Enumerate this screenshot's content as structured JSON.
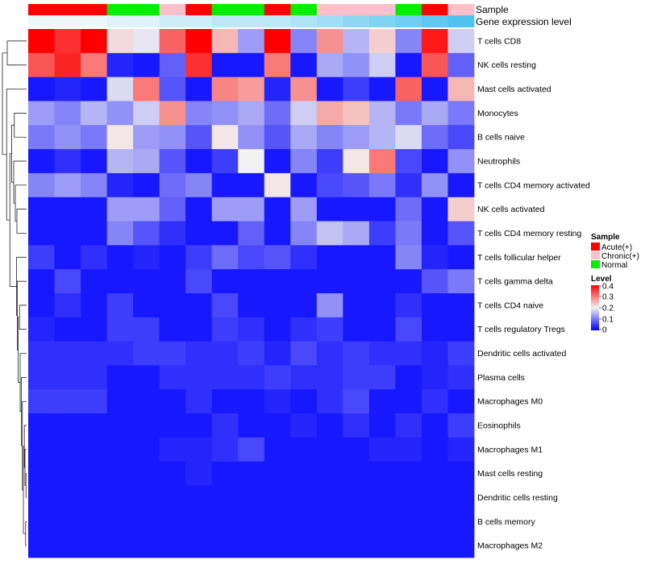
{
  "chart_data": {
    "type": "heatmap",
    "title": "",
    "n_columns": 17,
    "sample_annotation": {
      "label": "Sample",
      "values": [
        "Acute(+)",
        "Acute(+)",
        "Acute(+)",
        "Normal",
        "Normal",
        "Chronic(+)",
        "Acute(+)",
        "Normal",
        "Normal",
        "Acute(+)",
        "Normal",
        "Chronic(+)",
        "Chronic(+)",
        "Chronic(+)",
        "Normal",
        "Acute(+)",
        "Chronic(+)"
      ]
    },
    "expression_annotation": {
      "label": "Gene expression level",
      "values": [
        0.0,
        0.0,
        0.0,
        0.1,
        0.1,
        0.2,
        0.2,
        0.3,
        0.3,
        0.3,
        0.4,
        0.5,
        0.6,
        0.7,
        0.8,
        0.9,
        1.0
      ]
    },
    "rows": [
      {
        "name": "T cells CD8",
        "values": [
          0.4,
          0.36,
          0.4,
          0.22,
          0.19,
          0.32,
          0.4,
          0.25,
          0.13,
          0.4,
          0.11,
          0.28,
          0.15,
          0.23,
          0.11,
          0.38,
          0.17
        ]
      },
      {
        "name": "NK cells resting",
        "values": [
          0.33,
          0.37,
          0.3,
          0.03,
          0.02,
          0.08,
          0.36,
          0.02,
          0.02,
          0.3,
          0.02,
          0.14,
          0.12,
          0.17,
          0.02,
          0.33,
          0.08
        ]
      },
      {
        "name": "Mast cells activated",
        "values": [
          0.02,
          0.03,
          0.02,
          0.18,
          0.3,
          0.07,
          0.02,
          0.29,
          0.27,
          0.03,
          0.28,
          0.02,
          0.05,
          0.02,
          0.32,
          0.02,
          0.25
        ]
      },
      {
        "name": "Monocytes",
        "values": [
          0.13,
          0.11,
          0.15,
          0.12,
          0.17,
          0.28,
          0.11,
          0.12,
          0.14,
          0.09,
          0.17,
          0.26,
          0.24,
          0.15,
          0.1,
          0.14,
          0.1
        ]
      },
      {
        "name": "B cells naive",
        "values": [
          0.1,
          0.12,
          0.1,
          0.21,
          0.13,
          0.12,
          0.07,
          0.21,
          0.12,
          0.07,
          0.14,
          0.11,
          0.13,
          0.15,
          0.18,
          0.09,
          0.06
        ]
      },
      {
        "name": "Neutrophils",
        "values": [
          0.02,
          0.04,
          0.02,
          0.15,
          0.14,
          0.07,
          0.02,
          0.05,
          0.2,
          0.02,
          0.11,
          0.05,
          0.21,
          0.3,
          0.06,
          0.02,
          0.12
        ]
      },
      {
        "name": "T cells CD4 memory activated",
        "values": [
          0.11,
          0.13,
          0.11,
          0.03,
          0.02,
          0.09,
          0.11,
          0.02,
          0.02,
          0.21,
          0.02,
          0.06,
          0.07,
          0.1,
          0.04,
          0.12,
          0.02
        ]
      },
      {
        "name": "NK cells activated",
        "values": [
          0.02,
          0.02,
          0.02,
          0.13,
          0.13,
          0.08,
          0.02,
          0.13,
          0.13,
          0.02,
          0.13,
          0.02,
          0.02,
          0.02,
          0.09,
          0.02,
          0.23
        ]
      },
      {
        "name": "T cells CD4 memory resting",
        "values": [
          0.02,
          0.02,
          0.02,
          0.11,
          0.07,
          0.04,
          0.02,
          0.02,
          0.08,
          0.02,
          0.11,
          0.16,
          0.14,
          0.05,
          0.1,
          0.02,
          0.07
        ]
      },
      {
        "name": "T cells follicular helper",
        "values": [
          0.05,
          0.02,
          0.04,
          0.02,
          0.03,
          0.02,
          0.05,
          0.09,
          0.06,
          0.07,
          0.04,
          0.02,
          0.02,
          0.02,
          0.11,
          0.03,
          0.02
        ]
      },
      {
        "name": "T cells gamma delta",
        "values": [
          0.02,
          0.06,
          0.02,
          0.02,
          0.02,
          0.02,
          0.06,
          0.02,
          0.02,
          0.02,
          0.02,
          0.02,
          0.02,
          0.02,
          0.02,
          0.07,
          0.1
        ]
      },
      {
        "name": "T cells CD4 naive",
        "values": [
          0.02,
          0.04,
          0.02,
          0.05,
          0.02,
          0.02,
          0.02,
          0.06,
          0.02,
          0.02,
          0.02,
          0.12,
          0.02,
          0.02,
          0.04,
          0.02,
          0.02
        ]
      },
      {
        "name": "T cells regulatory  Tregs",
        "values": [
          0.03,
          0.02,
          0.02,
          0.05,
          0.05,
          0.02,
          0.02,
          0.05,
          0.04,
          0.02,
          0.04,
          0.05,
          0.02,
          0.02,
          0.06,
          0.02,
          0.02
        ]
      },
      {
        "name": "Dendritic cells activated",
        "values": [
          0.04,
          0.04,
          0.04,
          0.04,
          0.05,
          0.05,
          0.04,
          0.04,
          0.05,
          0.03,
          0.06,
          0.04,
          0.05,
          0.04,
          0.04,
          0.03,
          0.05
        ]
      },
      {
        "name": "Plasma cells",
        "values": [
          0.04,
          0.04,
          0.04,
          0.02,
          0.02,
          0.04,
          0.04,
          0.04,
          0.04,
          0.05,
          0.04,
          0.04,
          0.05,
          0.05,
          0.02,
          0.03,
          0.04
        ]
      },
      {
        "name": "Macrophages M0",
        "values": [
          0.05,
          0.05,
          0.05,
          0.02,
          0.02,
          0.02,
          0.04,
          0.02,
          0.02,
          0.03,
          0.02,
          0.04,
          0.06,
          0.02,
          0.02,
          0.04,
          0.02
        ]
      },
      {
        "name": "Eosinophils",
        "values": [
          0.02,
          0.02,
          0.02,
          0.02,
          0.02,
          0.02,
          0.02,
          0.04,
          0.02,
          0.02,
          0.03,
          0.02,
          0.04,
          0.02,
          0.04,
          0.02,
          0.05
        ]
      },
      {
        "name": "Macrophages M1",
        "values": [
          0.02,
          0.02,
          0.02,
          0.02,
          0.02,
          0.03,
          0.03,
          0.04,
          0.06,
          0.02,
          0.02,
          0.02,
          0.02,
          0.03,
          0.03,
          0.02,
          0.03
        ]
      },
      {
        "name": "Mast cells resting",
        "values": [
          0.02,
          0.02,
          0.02,
          0.02,
          0.02,
          0.02,
          0.03,
          0.02,
          0.02,
          0.02,
          0.02,
          0.02,
          0.02,
          0.02,
          0.02,
          0.02,
          0.02
        ]
      },
      {
        "name": "Dendritic cells resting",
        "values": [
          0.02,
          0.02,
          0.02,
          0.02,
          0.02,
          0.02,
          0.02,
          0.02,
          0.02,
          0.02,
          0.02,
          0.02,
          0.02,
          0.02,
          0.02,
          0.02,
          0.02
        ]
      },
      {
        "name": "B cells memory",
        "values": [
          0.02,
          0.02,
          0.02,
          0.02,
          0.02,
          0.02,
          0.02,
          0.02,
          0.02,
          0.02,
          0.02,
          0.02,
          0.02,
          0.02,
          0.02,
          0.02,
          0.02
        ]
      },
      {
        "name": "Macrophages M2",
        "values": [
          0.02,
          0.02,
          0.02,
          0.02,
          0.02,
          0.02,
          0.02,
          0.02,
          0.02,
          0.02,
          0.02,
          0.02,
          0.02,
          0.02,
          0.02,
          0.02,
          0.02
        ]
      }
    ],
    "color_scale": {
      "stops": [
        {
          "value": 0.0,
          "color": "#0000ff"
        },
        {
          "value": 0.2,
          "color": "#f2f2f2"
        },
        {
          "value": 0.4,
          "color": "#ff0000"
        }
      ]
    },
    "expression_colors": {
      "low": "#eef8fb",
      "high": "#4fc3f0"
    },
    "legend": {
      "sample": {
        "title": "Sample",
        "items": [
          {
            "label": "Acute(+)",
            "color": "#ff0000"
          },
          {
            "label": "Chronic(+)",
            "color": "#ffc0cb"
          },
          {
            "label": "Normal",
            "color": "#00ee00"
          }
        ]
      },
      "level": {
        "title": "Level",
        "ticks": [
          0.4,
          0.3,
          0.2,
          0.1,
          0
        ]
      }
    },
    "row_dendrogram": {
      "merges": [
        [
          -19,
          -20
        ],
        [
          -21,
          -22
        ],
        [
          -18,
          1
        ],
        [
          -17,
          3
        ],
        [
          2,
          4
        ],
        [
          -16,
          5
        ],
        [
          -15,
          6
        ],
        [
          -14,
          7
        ],
        [
          -13,
          -12
        ],
        [
          9,
          8
        ],
        [
          -11,
          10
        ],
        [
          -10,
          11
        ],
        [
          -9,
          -8
        ],
        [
          -7,
          13
        ],
        [
          -6,
          14
        ],
        [
          -5,
          -4
        ],
        [
          15,
          16
        ],
        [
          12,
          17
        ],
        [
          -3,
          18
        ],
        [
          -1,
          -2
        ],
        [
          20,
          19
        ]
      ],
      "heights": [
        0.2,
        0.3,
        0.5,
        0.7,
        1.0,
        1.3,
        1.6,
        2.0,
        2.2,
        2.6,
        2.9,
        3.1,
        3.0,
        3.5,
        4.0,
        3.8,
        4.6,
        5.2,
        6.2,
        6.0,
        7.5
      ]
    }
  }
}
